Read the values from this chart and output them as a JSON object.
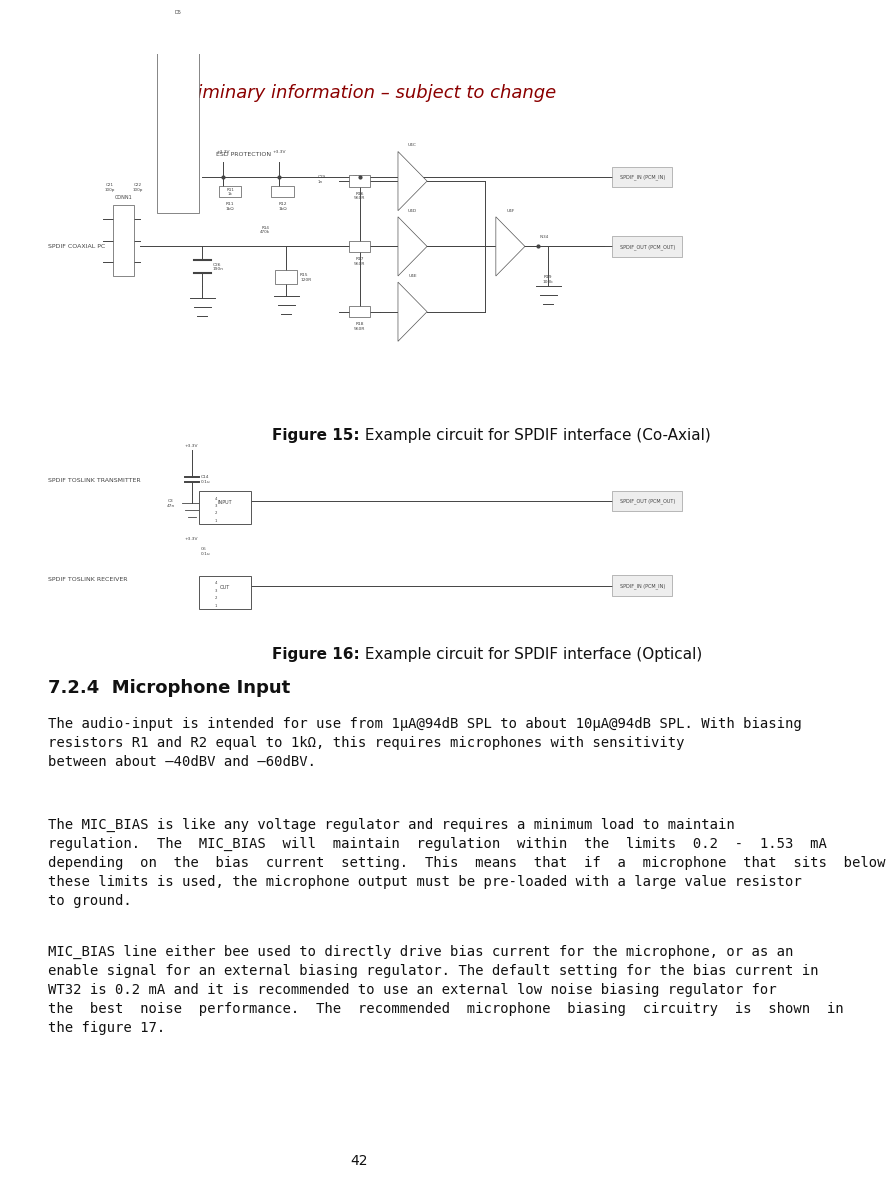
{
  "page_title": "Preliminary information – subject to change",
  "page_title_color": "#8B0000",
  "page_title_fontsize": 13,
  "page_number": "42",
  "page_number_fontsize": 10,
  "background_color": "#ffffff",
  "fig15_caption_bold": "Figure 15:",
  "fig15_caption_rest": " Example circuit for SPDIF interface (Co-Axial)",
  "fig15_caption_fontsize": 11,
  "fig16_caption_bold": "Figure 16:",
  "fig16_caption_rest": " Example circuit for SPDIF interface (Optical)",
  "fig16_caption_fontsize": 11,
  "section_header": "7.2.4  Microphone Input",
  "section_header_fontsize": 13,
  "body_text_fontsize": 10,
  "para1_line1": "The audio-input is intended for use from 1μA@94dB SPL to about 10μA@94dB SPL. With biasing",
  "para1_line2": "resistors R1 and R2 equal to 1kΩ, this requires microphones with sensitivity",
  "para1_line3": "between about –40dBV and –60dBV.",
  "para2_line1": "The MIC_BIAS is like any voltage regulator and requires a minimum load to maintain",
  "para2_line2": "regulation.  The  MIC_BIAS  will  maintain  regulation  within  the  limits  0.2  -  1.53  mA",
  "para2_line3": "depending  on  the  bias  current  setting.  This  means  that  if  a  microphone  that  sits  below",
  "para2_line4": "these limits is used, the microphone output must be pre-loaded with a large value resistor",
  "para2_line5": "to ground.",
  "para3_line1": "MIC_BIAS line either bee used to directly drive bias current for the microphone, or as an",
  "para3_line2": "enable signal for an external biasing regulator. The default setting for the bias current in",
  "para3_line3": "WT32 is 0.2 mA and it is recommended to use an external low noise biasing regulator for",
  "para3_line4": "the  best  noise  performance.  The  recommended  microphone  biasing  circuitry  is  shown  in",
  "para3_line5": "the figure 17.",
  "text_color": "#111111",
  "circuit_line_color": "#444444",
  "circuit_box_color": "#555555"
}
